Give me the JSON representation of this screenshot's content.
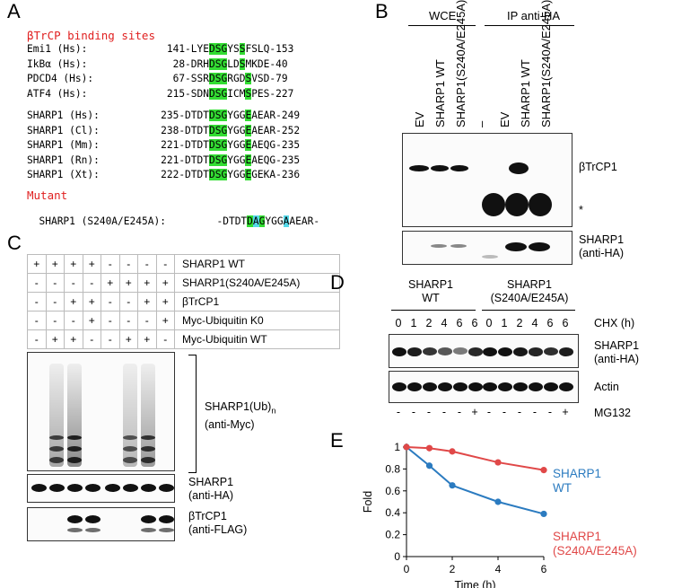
{
  "panelA": {
    "label": "A",
    "title": "βTrCP binding sites",
    "rows1": [
      {
        "name": "Emi1 (Hs):",
        "pre": "141-LYE",
        "m1": "DSG",
        "mid": "YS",
        "m2": "S",
        "post": "FSLQ-153"
      },
      {
        "name": "IkBα (Hs):",
        "pre": "28-DRH",
        "m1": "DSG",
        "mid": "LD",
        "m2": "S",
        "post": "MKDE-40"
      },
      {
        "name": "PDCD4 (Hs):",
        "pre": "67-SSR",
        "m1": "DSG",
        "mid": "RGD",
        "m2": "S",
        "post": "VSD-79"
      },
      {
        "name": "ATF4 (Hs):",
        "pre": "215-SDN",
        "m1": "DSG",
        "mid": "ICM",
        "m2": "S",
        "post": "PES-227"
      }
    ],
    "rows2": [
      {
        "name": "SHARP1 (Hs):",
        "pre": "235-DTDT",
        "m1": "DSG",
        "mid": "YGG",
        "m2": "E",
        "post": "AEAR-249"
      },
      {
        "name": "SHARP1 (Cl):",
        "pre": "238-DTDT",
        "m1": "DSG",
        "mid": "YGG",
        "m2": "E",
        "post": "AEAR-252"
      },
      {
        "name": "SHARP1 (Mm):",
        "pre": "221-DTDT",
        "m1": "DSG",
        "mid": "YGG",
        "m2": "E",
        "post": "AEQG-235"
      },
      {
        "name": "SHARP1 (Rn):",
        "pre": "221-DTDT",
        "m1": "DSG",
        "mid": "YGG",
        "m2": "E",
        "post": "AEQG-235"
      },
      {
        "name": "SHARP1 (Xt):",
        "pre": "222-DTDT",
        "m1": "DSG",
        "mid": "YGG",
        "m2": "E",
        "post": "GEKA-236"
      }
    ],
    "mutant_title": "Mutant",
    "mutant": {
      "name": "SHARP1 (S240A/E245A):",
      "pre": "-DTDT",
      "m1a": "D",
      "m1b": "A",
      "m1c": "G",
      "mid": "YGG",
      "m2": "A",
      "post": "AEAR-"
    }
  },
  "panelB": {
    "label": "B",
    "group1": "WCE",
    "group2": "IP anti-HA",
    "lanes": [
      "EV",
      "SHARP1 WT",
      "SHARP1(S240A/E245A)",
      "–",
      "EV",
      "SHARP1 WT",
      "SHARP1(S240A/E245A)"
    ],
    "blot1_label": "βTrCP1",
    "star": "*",
    "blot2_label1": "SHARP1",
    "blot2_label2": "(anti-HA)"
  },
  "panelC": {
    "label": "C",
    "rows": [
      {
        "label": "SHARP1 WT",
        "signs": [
          "+",
          "+",
          "+",
          "+",
          "-",
          "-",
          "-",
          "-"
        ]
      },
      {
        "label": "SHARP1(S240A/E245A)",
        "signs": [
          "-",
          "-",
          "-",
          "-",
          "+",
          "+",
          "+",
          "+"
        ]
      },
      {
        "label": "βTrCP1",
        "signs": [
          "-",
          "-",
          "+",
          "+",
          "-",
          "-",
          "+",
          "+"
        ]
      },
      {
        "label": "Myc-Ubiquitin K0",
        "signs": [
          "-",
          "-",
          "-",
          "+",
          "-",
          "-",
          "-",
          "+"
        ]
      },
      {
        "label": "Myc-Ubiquitin WT",
        "signs": [
          "-",
          "+",
          "+",
          "-",
          "-",
          "+",
          "+",
          "-"
        ]
      }
    ],
    "blot1_label1": "SHARP1(Ub)",
    "blot1_sub": "n",
    "blot1_label2": "(anti-Myc)",
    "blot2_label1": "SHARP1",
    "blot2_label2": "(anti-HA)",
    "blot3_label1": "βTrCP1",
    "blot3_label2": "(anti-FLAG)"
  },
  "panelD": {
    "label": "D",
    "group1_l1": "SHARP1",
    "group1_l2": "WT",
    "group2_l1": "SHARP1",
    "group2_l2": "(S240A/E245A)",
    "times": [
      "0",
      "1",
      "2",
      "4",
      "6",
      "6",
      "0",
      "1",
      "2",
      "4",
      "6",
      "6"
    ],
    "cond_label": "CHX (h)",
    "blot1_label1": "SHARP1",
    "blot1_label2": "(anti-HA)",
    "blot2_label": "Actin",
    "mg_signs": [
      "-",
      "-",
      "-",
      "-",
      "-",
      "+",
      "-",
      "-",
      "-",
      "-",
      "-",
      "+"
    ],
    "mg_label": "MG132"
  },
  "panelE": {
    "label": "E",
    "chart_data": {
      "type": "line",
      "xlabel": "Time (h)",
      "ylabel": "Fold",
      "xlim": [
        0,
        6
      ],
      "ylim": [
        0,
        1
      ],
      "xticks": [
        "0",
        "2",
        "4",
        "6"
      ],
      "yticks": [
        "0",
        "0.2",
        "0.4",
        "0.6",
        "0.8",
        "1"
      ],
      "series": [
        {
          "name": "SHARP1 WT",
          "line1": "SHARP1",
          "line2": "WT",
          "color": "#2b7bc0",
          "x": [
            0,
            1,
            2,
            4,
            6
          ],
          "y": [
            1,
            0.83,
            0.65,
            0.5,
            0.39
          ]
        },
        {
          "name": "SHARP1 (S240A/E245A)",
          "line1": "SHARP1",
          "line2": "(S240A/E245A)",
          "color": "#e04848",
          "x": [
            0,
            1,
            2,
            4,
            6
          ],
          "y": [
            1,
            0.99,
            0.96,
            0.86,
            0.79
          ]
        }
      ]
    }
  }
}
